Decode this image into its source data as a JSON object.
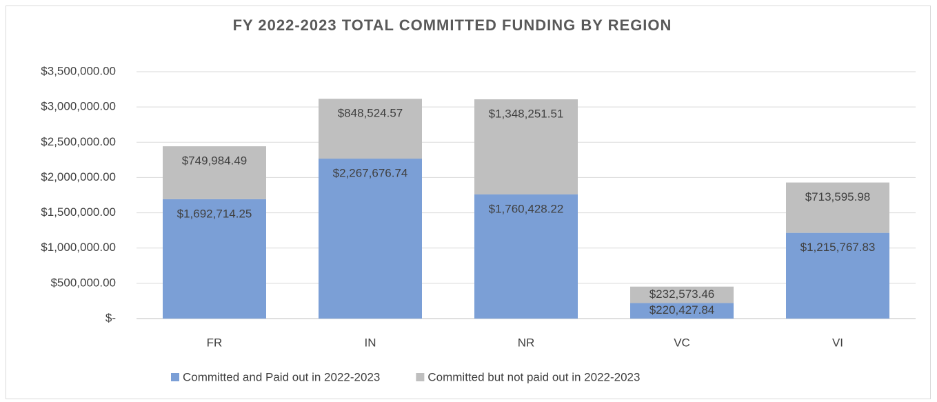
{
  "chart_data": {
    "type": "stacked_bar",
    "title": "FY 2022-2023 TOTAL COMMITTED FUNDING BY REGION",
    "categories": [
      "FR",
      "IN",
      "NR",
      "VC",
      "VI"
    ],
    "series": [
      {
        "name": "Committed and Paid out in 2022-2023",
        "color": "#7b9fd6",
        "values": [
          1692714.25,
          2267676.74,
          1760428.22,
          220427.84,
          1215767.83
        ],
        "value_labels": [
          "$1,692,714.25",
          "$2,267,676.74",
          "$1,760,428.22",
          "$220,427.84",
          "$1,215,767.83"
        ]
      },
      {
        "name": "Committed but not paid out in 2022-2023",
        "color": "#bfbfbf",
        "values": [
          749984.49,
          848524.57,
          1348251.51,
          232573.46,
          713595.98
        ],
        "value_labels": [
          "$749,984.49",
          "$848,524.57",
          "$1,348,251.51",
          "$232,573.46",
          "$713,595.98"
        ]
      }
    ],
    "ylim": [
      0,
      3500000
    ],
    "yticks": [
      {
        "value": 0,
        "label": "$-"
      },
      {
        "value": 500000,
        "label": "$500,000.00"
      },
      {
        "value": 1000000,
        "label": "$1,000,000.00"
      },
      {
        "value": 1500000,
        "label": "$1,500,000.00"
      },
      {
        "value": 2000000,
        "label": "$2,000,000.00"
      },
      {
        "value": 2500000,
        "label": "$2,500,000.00"
      },
      {
        "value": 3000000,
        "label": "$3,000,000.00"
      },
      {
        "value": 3500000,
        "label": "$3,500,000.00"
      }
    ],
    "grid": true,
    "legend": "bottom"
  }
}
